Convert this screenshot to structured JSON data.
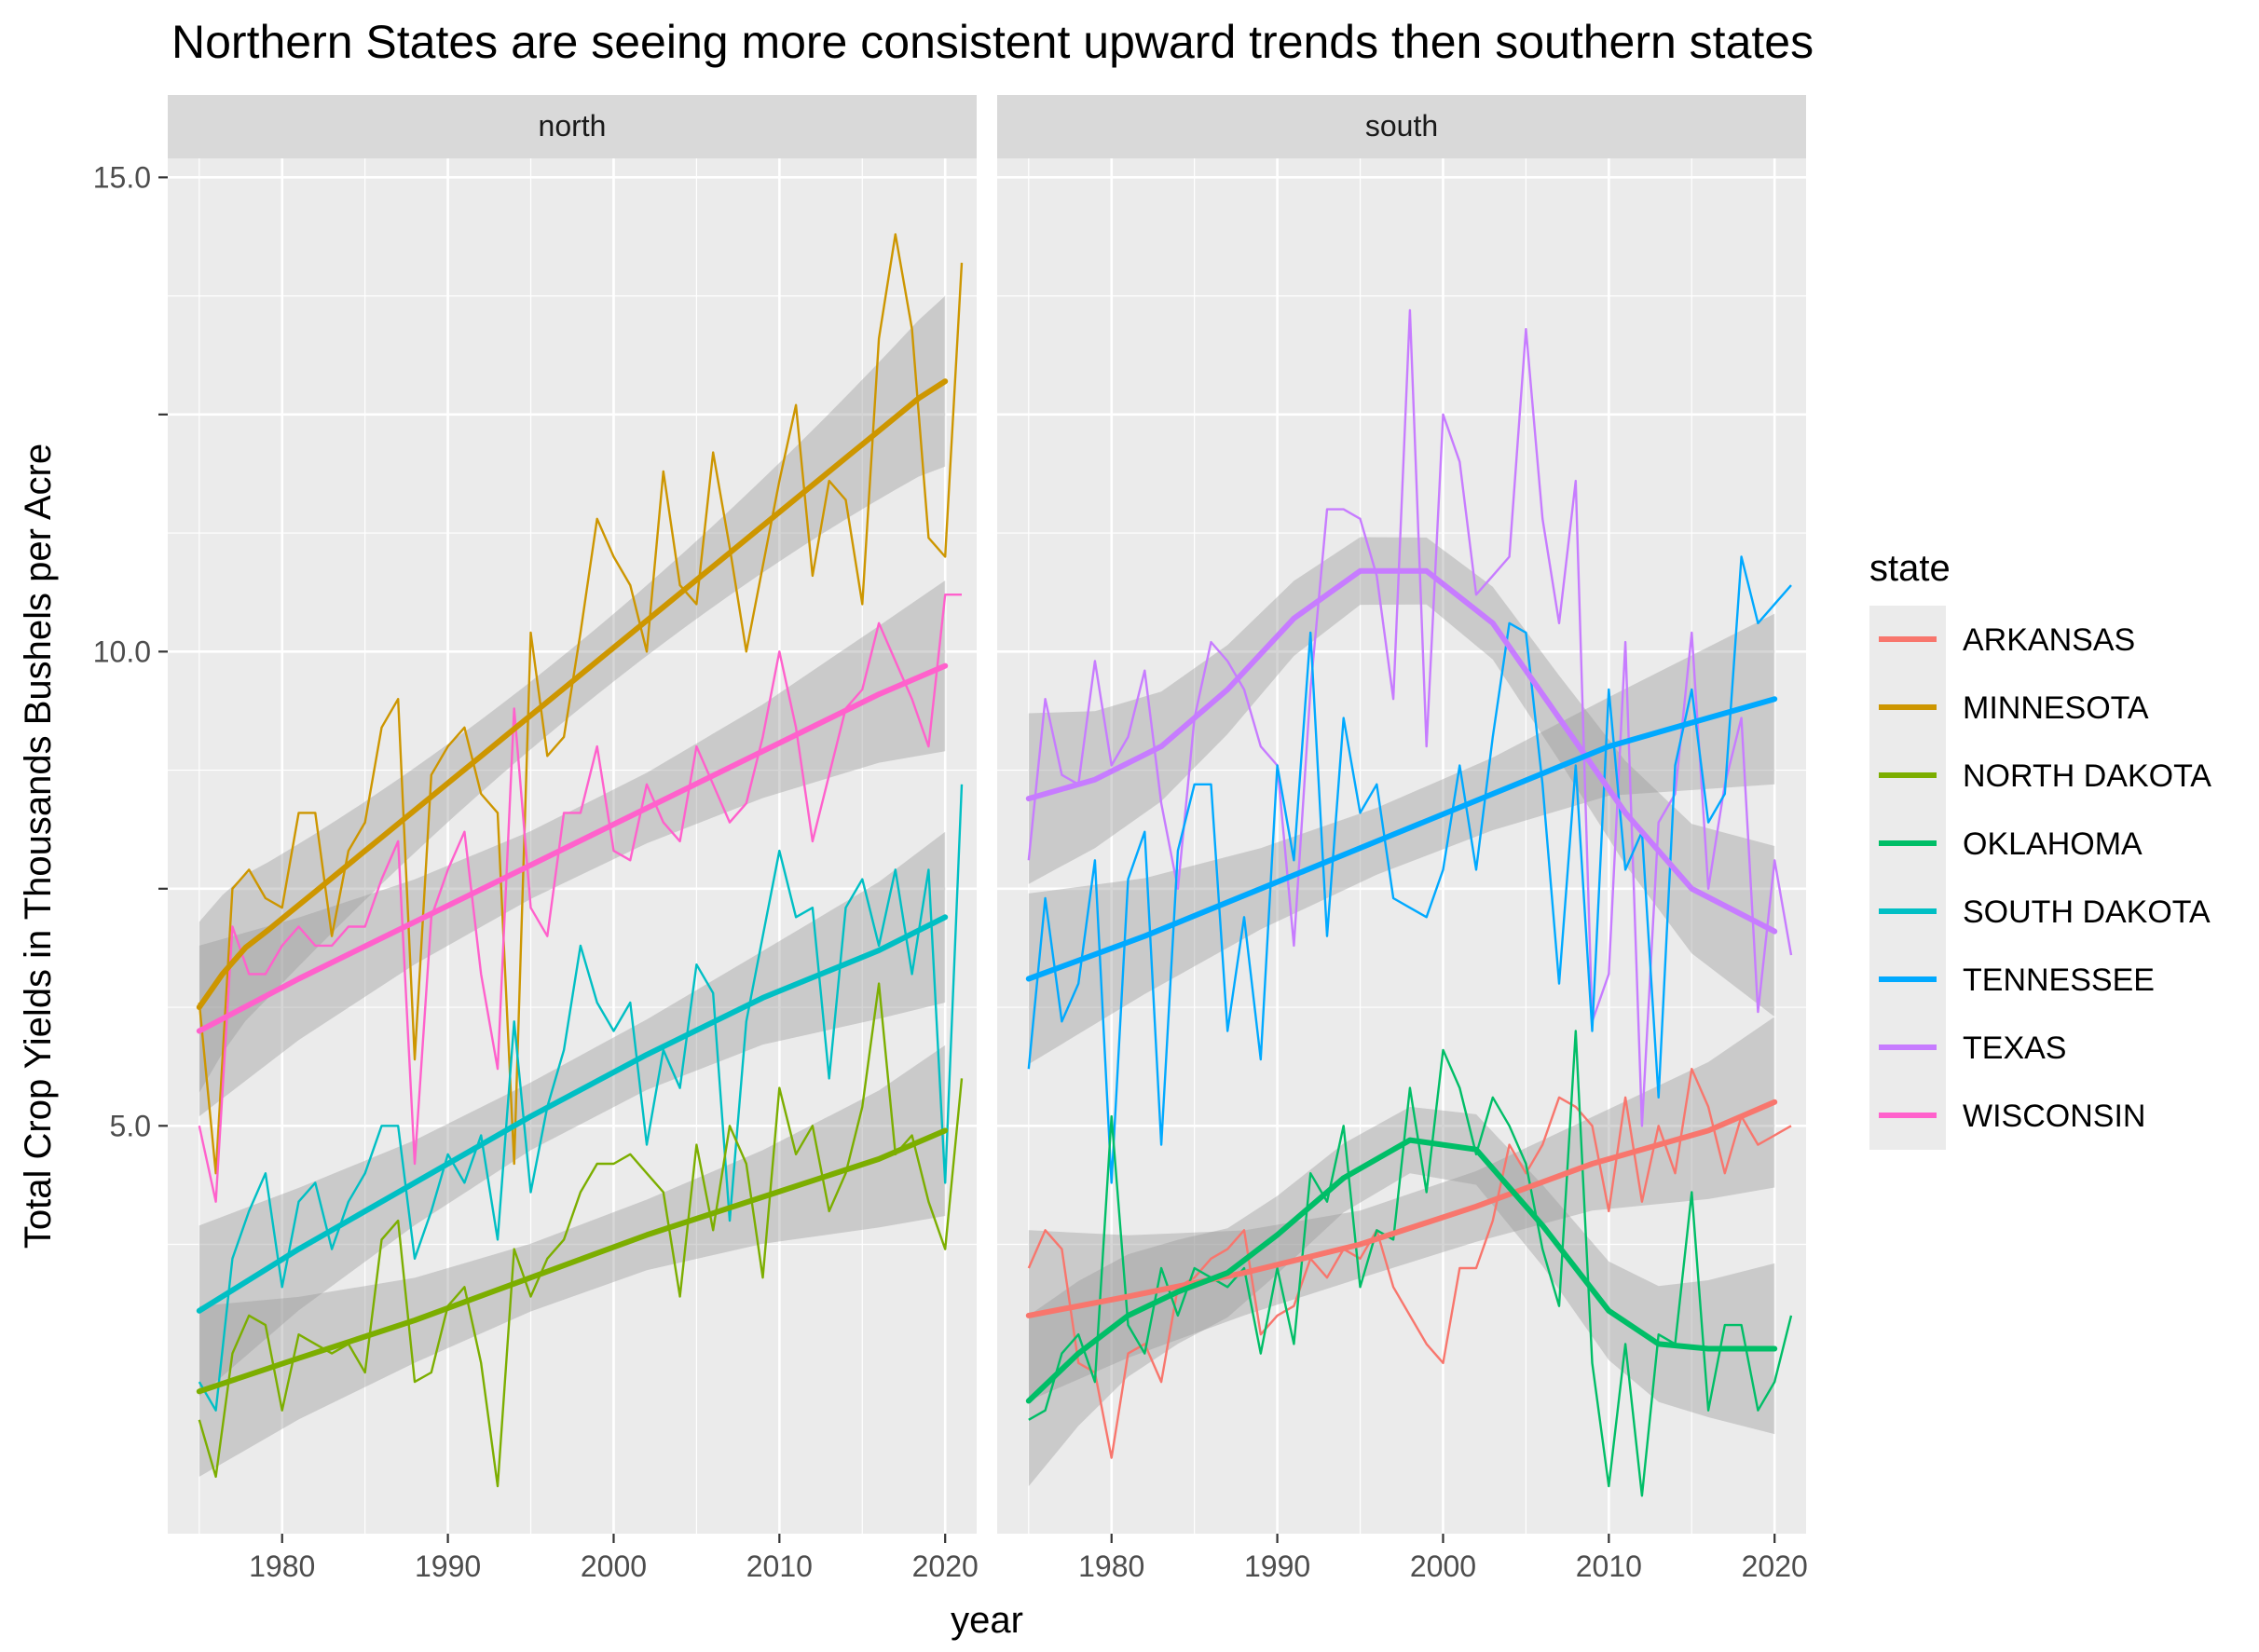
{
  "chart_data": {
    "type": "line",
    "title": "Northern States are seeing more consistent upward trends then southern states",
    "xlabel": "year",
    "ylabel": "Total Crop Yields in Thousands Bushels per Acre",
    "xlim": [
      1973.1,
      2021.9
    ],
    "ylim": [
      0.7,
      15.2
    ],
    "x_ticks": [
      1980,
      1990,
      2000,
      2010,
      2020
    ],
    "y_ticks": [
      5.0,
      7.5,
      10.0,
      12.5,
      15.0
    ],
    "y_tick_labels": [
      "5.0",
      "",
      "10.0",
      "",
      "15.0"
    ],
    "x_tick_labels": [
      "1980",
      "1990",
      "2000",
      "2010",
      "2020"
    ],
    "grid": true,
    "legend": {
      "title": "state",
      "position": "right",
      "entries": [
        "ARKANSAS",
        "MINNESOTA",
        "NORTH DAKOTA",
        "OKLAHOMA",
        "SOUTH DAKOTA",
        "TENNESSEE",
        "TEXAS",
        "WISCONSIN"
      ]
    },
    "colors": {
      "ARKANSAS": "#F8766D",
      "MINNESOTA": "#CD9600",
      "NORTH DAKOTA": "#7CAE00",
      "OKLAHOMA": "#00BE67",
      "SOUTH DAKOTA": "#00BFC4",
      "TENNESSEE": "#00A9FF",
      "TEXAS": "#C77CFF",
      "WISCONSIN": "#FF61CC"
    },
    "start_year": 1975,
    "panels": [
      {
        "name": "north",
        "series": [
          {
            "name": "MINNESOTA",
            "values": [
              6.3,
              4.5,
              7.5,
              7.7,
              7.4,
              7.3,
              8.3,
              8.3,
              7.0,
              7.9,
              8.2,
              9.2,
              9.5,
              5.7,
              8.7,
              9.0,
              9.2,
              8.5,
              8.3,
              4.6,
              10.2,
              8.9,
              9.1,
              10.2,
              11.4,
              11.0,
              10.7,
              10.0,
              11.9,
              10.7,
              10.5,
              12.1,
              11.1,
              10.0,
              10.9,
              11.8,
              12.6,
              10.8,
              11.8,
              11.6,
              10.5,
              13.3,
              14.4,
              13.4,
              11.2,
              11.0,
              14.1
            ],
            "trend": [
              6.25,
              6.6,
              6.88,
              7.07,
              7.27,
              7.47,
              7.67,
              7.87,
              8.07,
              8.27,
              8.47,
              8.67,
              8.87,
              9.07,
              9.27,
              9.47,
              9.67,
              9.87,
              10.07,
              10.27,
              10.47,
              10.67,
              10.87,
              11.07,
              11.27,
              11.47,
              11.67,
              11.87,
              12.07,
              12.27,
              12.47,
              12.67,
              12.85
            ],
            "trend_x": [
              1975,
              1976.4,
              1977.8,
              1979.2,
              1980.6,
              1982,
              1983.4,
              1984.8,
              1986.2,
              1987.6,
              1989,
              1990.4,
              1991.8,
              1993.2,
              1994.6,
              1996,
              1997.4,
              1998.8,
              2000.2,
              2001.6,
              2003,
              2004.4,
              2005.8,
              2007.2,
              2008.6,
              2010,
              2011.4,
              2012.8,
              2014.2,
              2015.6,
              2017,
              2018.4,
              2020
            ]
          },
          {
            "name": "WISCONSIN",
            "values": [
              5.0,
              4.2,
              7.1,
              6.6,
              6.6,
              6.9,
              7.1,
              6.9,
              6.9,
              7.1,
              7.1,
              7.6,
              8.0,
              4.6,
              7.2,
              7.7,
              8.1,
              6.6,
              5.6,
              9.4,
              7.3,
              7.0,
              8.3,
              8.3,
              9.0,
              7.9,
              7.8,
              8.6,
              8.2,
              8.0,
              9.0,
              8.6,
              8.2,
              8.4,
              9.1,
              10.0,
              9.2,
              8.0,
              8.7,
              9.4,
              9.6,
              10.3,
              9.9,
              9.5,
              9.0,
              10.6,
              10.6
            ],
            "trend": [
              6.0,
              6.55,
              7.15,
              7.75,
              8.35,
              8.95,
              9.55,
              9.85
            ],
            "trend_x": [
              1975,
              1981,
              1988,
              1995,
              2002,
              2009,
              2016,
              2020
            ]
          },
          {
            "name": "SOUTH DAKOTA",
            "values": [
              2.3,
              2.0,
              3.6,
              4.1,
              4.5,
              3.3,
              4.2,
              4.4,
              3.7,
              4.2,
              4.5,
              5.0,
              5.0,
              3.6,
              4.1,
              4.7,
              4.4,
              4.9,
              3.8,
              6.1,
              4.3,
              5.2,
              5.8,
              6.9,
              6.3,
              6.0,
              6.3,
              4.8,
              5.8,
              5.4,
              6.7,
              6.4,
              4.0,
              6.1,
              7.0,
              7.9,
              7.2,
              7.3,
              5.5,
              7.3,
              7.6,
              6.9,
              7.7,
              6.6,
              7.7,
              4.4,
              8.6
            ],
            "trend": [
              3.05,
              3.7,
              4.4,
              5.1,
              5.75,
              6.35,
              6.85,
              7.2
            ],
            "trend_x": [
              1975,
              1981,
              1988,
              1995,
              2002,
              2009,
              2016,
              2020
            ]
          },
          {
            "name": "NORTH DAKOTA",
            "values": [
              1.9,
              1.3,
              2.6,
              3.0,
              2.9,
              2.0,
              2.8,
              2.7,
              2.6,
              2.7,
              2.4,
              3.8,
              4.0,
              2.3,
              2.4,
              3.1,
              3.3,
              2.5,
              1.2,
              3.7,
              3.2,
              3.6,
              3.8,
              4.3,
              4.6,
              4.6,
              4.7,
              4.5,
              4.3,
              3.2,
              4.8,
              3.9,
              5.0,
              4.6,
              3.4,
              5.4,
              4.7,
              5.0,
              4.1,
              4.5,
              5.2,
              6.5,
              4.7,
              4.9,
              4.2,
              3.7,
              5.5
            ],
            "trend": [
              2.2,
              2.55,
              2.95,
              3.4,
              3.85,
              4.25,
              4.65,
              4.95
            ],
            "trend_x": [
              1975,
              1981,
              1988,
              1995,
              2002,
              2009,
              2016,
              2020
            ]
          }
        ]
      },
      {
        "name": "south",
        "series": [
          {
            "name": "TEXAS",
            "values": [
              7.8,
              9.5,
              8.7,
              8.6,
              9.9,
              8.8,
              9.1,
              9.8,
              8.4,
              7.5,
              9.3,
              10.1,
              9.9,
              9.6,
              9.0,
              8.8,
              6.9,
              9.6,
              11.5,
              11.5,
              11.4,
              10.8,
              9.5,
              13.6,
              9.0,
              12.5,
              12.0,
              10.6,
              10.8,
              11.0,
              13.4,
              11.4,
              10.3,
              11.8,
              6.1,
              6.6,
              10.1,
              5.0,
              8.2,
              8.5,
              10.2,
              7.5,
              8.6,
              9.3,
              6.2,
              7.8,
              6.8
            ],
            "trend": [
              8.45,
              8.65,
              9.0,
              9.6,
              10.35,
              10.85,
              10.85,
              10.3,
              9.3,
              8.3,
              7.5,
              7.05
            ],
            "trend_x": [
              1975,
              1979,
              1983,
              1987,
              1991,
              1995,
              1999,
              2003,
              2007,
              2011,
              2015,
              2020
            ]
          },
          {
            "name": "TENNESSEE",
            "values": [
              5.6,
              7.4,
              6.1,
              6.5,
              7.8,
              4.4,
              7.6,
              8.1,
              4.8,
              7.9,
              8.6,
              8.6,
              6.0,
              7.2,
              5.7,
              8.8,
              7.8,
              10.2,
              7.0,
              9.3,
              8.3,
              8.6,
              7.4,
              7.3,
              7.2,
              7.7,
              8.8,
              7.7,
              9.1,
              10.3,
              10.2,
              8.6,
              6.5,
              8.8,
              6.0,
              9.6,
              7.7,
              8.1,
              5.3,
              8.8,
              9.6,
              8.2,
              8.5,
              11.0,
              10.3,
              10.5,
              10.7
            ],
            "trend": [
              6.55,
              7.0,
              7.5,
              8.0,
              8.5,
              9.0,
              9.5
            ],
            "trend_x": [
              1975,
              1982,
              1989,
              1996,
              2003,
              2010,
              2020
            ]
          },
          {
            "name": "ARKANSAS",
            "values": [
              3.5,
              3.9,
              3.7,
              2.5,
              2.4,
              1.5,
              2.6,
              2.7,
              2.3,
              3.3,
              3.4,
              3.6,
              3.7,
              3.9,
              2.8,
              3.0,
              3.1,
              3.6,
              3.4,
              3.7,
              3.6,
              3.9,
              3.3,
              3.0,
              2.7,
              2.5,
              3.5,
              3.5,
              4.0,
              4.8,
              4.5,
              4.8,
              5.3,
              5.2,
              5.0,
              4.1,
              5.3,
              4.2,
              5.0,
              4.5,
              5.6,
              5.2,
              4.5,
              5.1,
              4.8,
              4.9,
              5.0
            ],
            "trend": [
              3.0,
              3.2,
              3.45,
              3.75,
              4.15,
              4.6,
              4.95,
              5.25
            ],
            "trend_x": [
              1975,
              1981,
              1988,
              1995,
              2002,
              2009,
              2016,
              2020
            ]
          },
          {
            "name": "OKLAHOMA",
            "values": [
              1.9,
              2.0,
              2.6,
              2.8,
              2.3,
              5.1,
              2.9,
              2.6,
              3.5,
              3.0,
              3.5,
              3.4,
              3.3,
              3.5,
              2.6,
              3.5,
              2.7,
              4.5,
              4.2,
              5.0,
              3.3,
              3.9,
              3.8,
              5.4,
              4.3,
              5.8,
              5.4,
              4.7,
              5.3,
              5.0,
              4.6,
              3.7,
              3.1,
              6.0,
              2.5,
              1.2,
              2.7,
              1.1,
              2.8,
              2.7,
              4.3,
              2.0,
              2.9,
              2.9,
              2.0,
              2.3,
              3.0
            ],
            "trend": [
              2.1,
              2.6,
              3.0,
              3.25,
              3.45,
              3.85,
              4.45,
              4.85,
              4.75,
              3.95,
              3.05,
              2.7,
              2.65,
              2.65
            ],
            "trend_x": [
              1975,
              1978,
              1981,
              1984,
              1987,
              1990,
              1994,
              1998,
              2002,
              2006,
              2010,
              2013,
              2016,
              2020
            ]
          }
        ]
      }
    ]
  }
}
